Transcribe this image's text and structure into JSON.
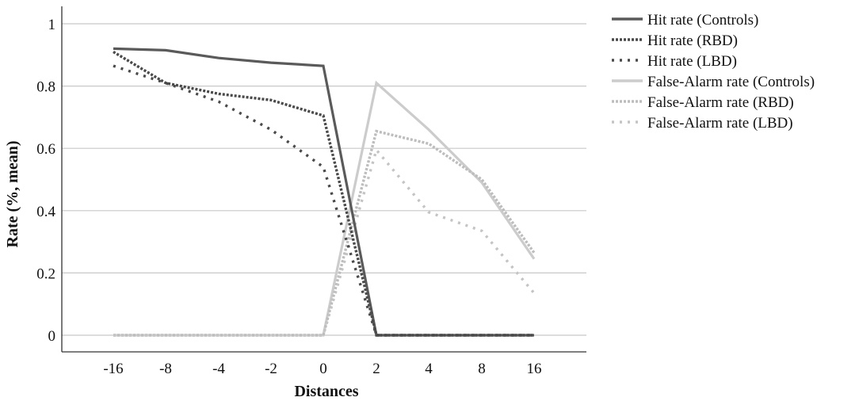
{
  "chart_data": {
    "type": "line",
    "title": "",
    "xlabel": "Distances",
    "ylabel": "Rate (%, mean)",
    "categories": [
      "-16",
      "-8",
      "-4",
      "-2",
      "0",
      "2",
      "4",
      "8",
      "16"
    ],
    "ylim": [
      0,
      1.05
    ],
    "yticks": [
      "0",
      "0.2",
      "0.4",
      "0.6",
      "0.8",
      "1"
    ],
    "grid": true,
    "legend_position": "right",
    "series": [
      {
        "name": "Hit rate (Controls)",
        "color": "#5a5a5a",
        "dash": "solid",
        "values": [
          0.92,
          0.915,
          0.89,
          0.875,
          0.865,
          0.0,
          0.0,
          0.0,
          0.0
        ]
      },
      {
        "name": "Hit rate (RBD)",
        "color": "#4a4a4a",
        "dash": "dense-dot",
        "values": [
          0.91,
          0.81,
          0.775,
          0.755,
          0.705,
          0.0,
          0.0,
          0.0,
          0.0
        ]
      },
      {
        "name": "Hit rate (LBD)",
        "color": "#4a4a4a",
        "dash": "sparse-dot",
        "values": [
          0.865,
          0.81,
          0.75,
          0.66,
          0.54,
          0.0,
          0.0,
          0.0,
          0.0
        ]
      },
      {
        "name": "False-Alarm rate (Controls)",
        "color": "#cccccc",
        "dash": "solid",
        "values": [
          0.0,
          0.0,
          0.0,
          0.0,
          0.0,
          0.81,
          0.66,
          0.49,
          0.245
        ]
      },
      {
        "name": "False-Alarm rate (RBD)",
        "color": "#bdbdbd",
        "dash": "dense-dot",
        "values": [
          0.0,
          0.0,
          0.0,
          0.0,
          0.0,
          0.655,
          0.615,
          0.5,
          0.265
        ]
      },
      {
        "name": "False-Alarm rate (LBD)",
        "color": "#c4c4c4",
        "dash": "sparse-dot",
        "values": [
          0.0,
          0.0,
          0.0,
          0.0,
          0.0,
          0.595,
          0.395,
          0.335,
          0.135
        ]
      }
    ]
  }
}
